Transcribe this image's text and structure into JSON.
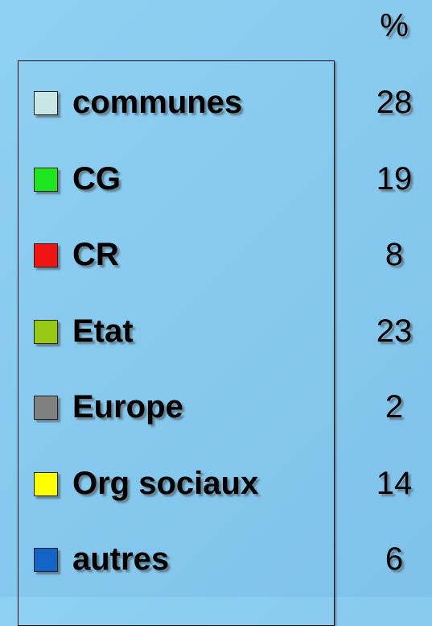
{
  "header": "%",
  "rows": [
    {
      "label": "communes",
      "color": "#c8e6e6",
      "value": 28
    },
    {
      "label": "CG",
      "color": "#1ee61e",
      "value": 19
    },
    {
      "label": "CR",
      "color": "#f01414",
      "value": 8
    },
    {
      "label": "Etat",
      "color": "#96c814",
      "value": 23
    },
    {
      "label": "Europe",
      "color": "#808080",
      "value": 2
    },
    {
      "label": "Org sociaux",
      "color": "#ffff00",
      "value": 14
    },
    {
      "label": "autres",
      "color": "#1464c8",
      "value": 6
    }
  ]
}
